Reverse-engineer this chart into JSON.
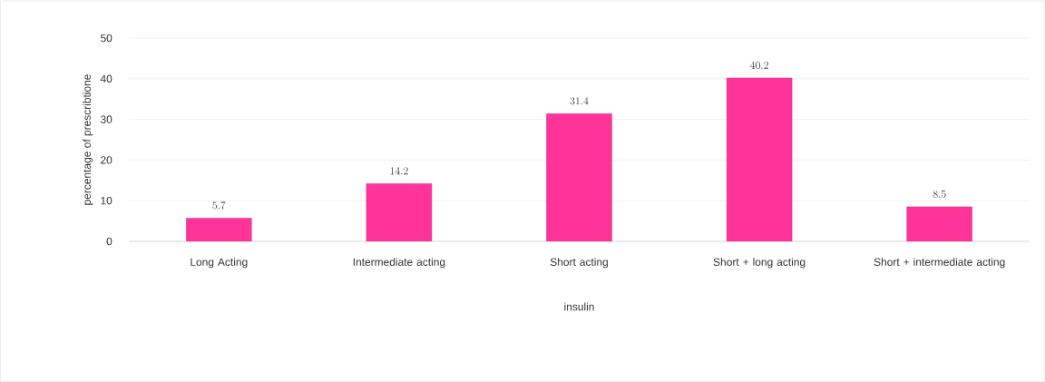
{
  "chart_data": {
    "type": "bar",
    "xlabel": "insulin",
    "ylabel": "percentage of prescribtione",
    "categories": [
      "Long Acting",
      "Intermediate acting",
      "Short acting",
      "Short + long acting",
      "Short + intermediate acting"
    ],
    "values": [
      5.7,
      14.2,
      31.4,
      40.2,
      8.5
    ],
    "color": "#ff3399",
    "ylim": [
      0,
      50
    ],
    "yticks": [
      0,
      10,
      20,
      30,
      40,
      50
    ],
    "grid": "y",
    "data_labels": true
  }
}
